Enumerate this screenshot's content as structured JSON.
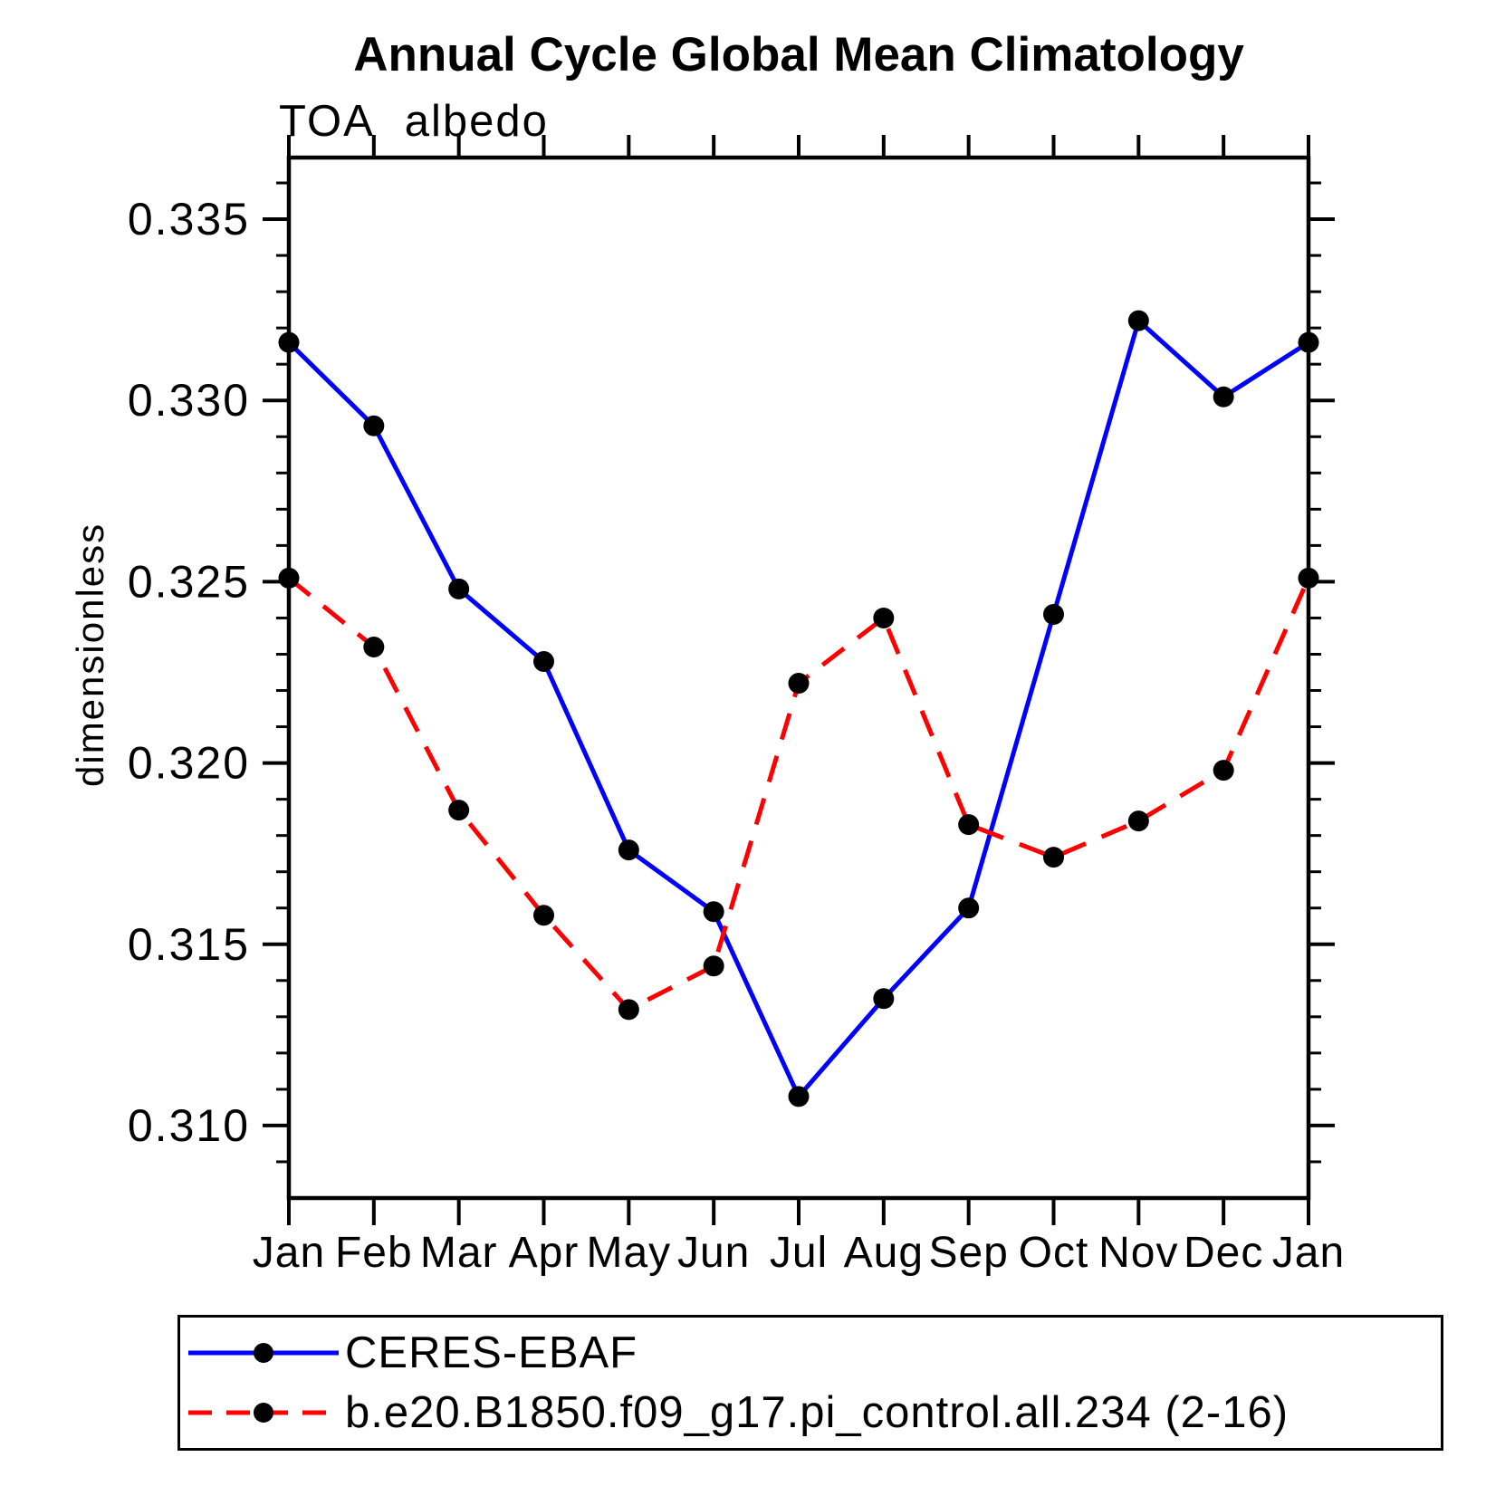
{
  "page": {
    "background": "#ffffff"
  },
  "header": {
    "title": "Annual Cycle Global Mean Climatology"
  },
  "chart_data": {
    "type": "line",
    "title": "Annual Cycle Global Mean Climatology",
    "subtitle": "TOA albedo",
    "xlabel": "",
    "ylabel": "dimensionless",
    "categories": [
      "Jan",
      "Feb",
      "Mar",
      "Apr",
      "May",
      "Jun",
      "Jul",
      "Aug",
      "Sep",
      "Oct",
      "Nov",
      "Dec",
      "Jan"
    ],
    "series": [
      {
        "name": "CERES-EBAF",
        "line_color": "#0000ff",
        "line_style": "solid",
        "marker": "circle",
        "marker_color": "#000000",
        "values": [
          0.3316,
          0.3293,
          0.3248,
          0.3228,
          0.3176,
          0.3159,
          0.3108,
          0.3135,
          0.316,
          0.3241,
          0.3322,
          0.3301,
          0.3316
        ]
      },
      {
        "name": "b.e20.B1850.f09_g17.pi_control.all.234 (2-16)",
        "line_color": "#ff0000",
        "line_style": "dashed",
        "marker": "circle",
        "marker_color": "#000000",
        "values": [
          0.3251,
          0.3232,
          0.3187,
          0.3158,
          0.3132,
          0.3144,
          0.3222,
          0.324,
          0.3183,
          0.3174,
          0.3184,
          0.3198,
          0.3251
        ]
      }
    ],
    "y_ticks": [
      {
        "value": 0.31,
        "label": "0.310"
      },
      {
        "value": 0.315,
        "label": "0.315"
      },
      {
        "value": 0.32,
        "label": "0.320"
      },
      {
        "value": 0.325,
        "label": "0.325"
      },
      {
        "value": 0.33,
        "label": "0.330"
      },
      {
        "value": 0.335,
        "label": "0.335"
      }
    ],
    "y_minor_ticks": {
      "start": 0.309,
      "end": 0.336,
      "step": 0.001
    },
    "ylim": [
      0.308,
      0.3367
    ],
    "grid": false,
    "legend_position": "bottom",
    "axis_color": "#000000"
  }
}
